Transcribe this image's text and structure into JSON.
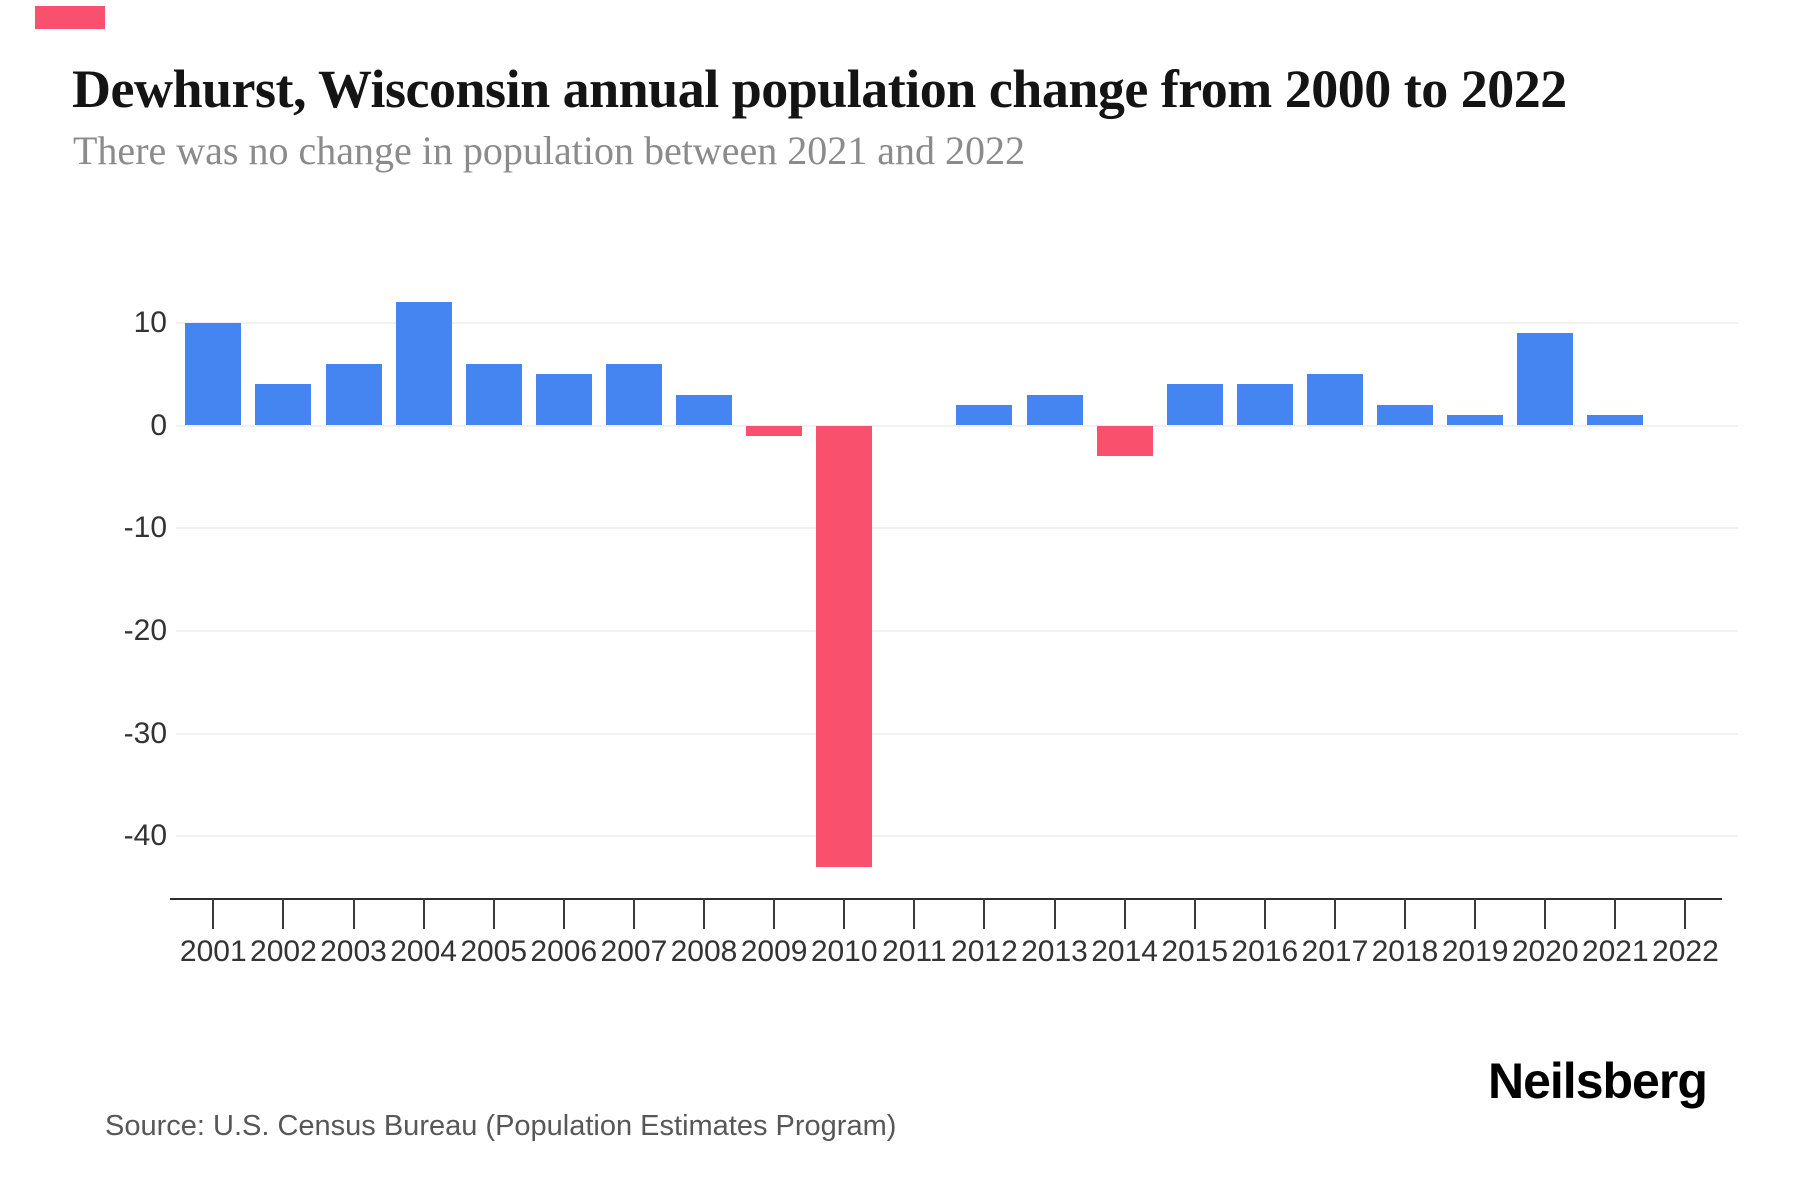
{
  "brand": {
    "accent_mark_color": "#f9506e"
  },
  "header": {
    "title": "Dewhurst, Wisconsin annual population change from 2000 to 2022",
    "subtitle": "There was no change in population between 2021 and 2022"
  },
  "chart_data": {
    "type": "bar",
    "title": "Dewhurst, Wisconsin annual population change from 2000 to 2022",
    "subtitle": "There was no change in population between 2021 and 2022",
    "categories": [
      "2001",
      "2002",
      "2003",
      "2004",
      "2005",
      "2006",
      "2007",
      "2008",
      "2009",
      "2010",
      "2011",
      "2012",
      "2013",
      "2014",
      "2015",
      "2016",
      "2017",
      "2018",
      "2019",
      "2020",
      "2021",
      "2022"
    ],
    "values": [
      10,
      4,
      6,
      12,
      6,
      5,
      6,
      3,
      -1,
      -43,
      0,
      2,
      3,
      -3,
      4,
      4,
      5,
      2,
      1,
      9,
      1,
      0
    ],
    "yticks": [
      10,
      0,
      -10,
      -20,
      -30,
      -40
    ],
    "ylim": [
      -46,
      13
    ],
    "grid": true,
    "legend": "none",
    "xlabel": "",
    "ylabel": "",
    "positive_color": "#4585f1",
    "negative_color": "#f9506e"
  },
  "footer": {
    "source": "Source: U.S. Census Bureau (Population Estimates Program)",
    "logo_text": "Neilsberg"
  },
  "colors": {
    "positive_bar": "#4585f1",
    "negative_bar": "#f9506e",
    "gridline": "#f1f1f1",
    "axis_line": "#2e2e2e",
    "tick_mark": "#3a3a3a",
    "tick_label": "#333333",
    "title": "#141414",
    "subtitle": "#8b8b8b",
    "source_text": "#575757",
    "logo": "#000000"
  }
}
